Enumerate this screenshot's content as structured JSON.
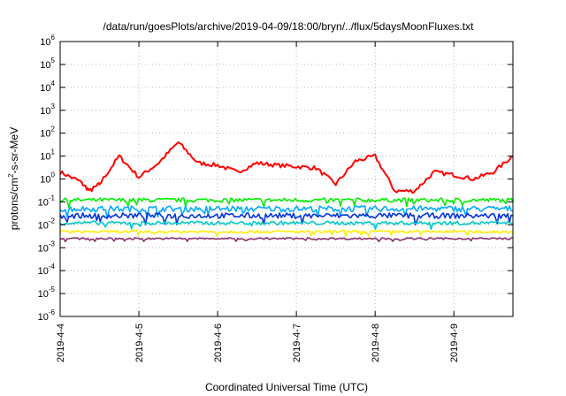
{
  "chart_data": {
    "type": "line",
    "title": "/data/run/goesPlots/archive/2019-04-09/18:00/bryn/../flux/5daysMoonFluxes.txt",
    "xlabel": "Coordinated Universal Time (UTC)",
    "ylabel_parts": [
      "protons/cm",
      "2",
      "-s-sr-MeV"
    ],
    "y_scale": "log",
    "ylim": [
      1e-06,
      1000000.0
    ],
    "y_ticks": [
      {
        "base": "10",
        "exp": "-6"
      },
      {
        "base": "10",
        "exp": "-5"
      },
      {
        "base": "10",
        "exp": "-4"
      },
      {
        "base": "10",
        "exp": "-3"
      },
      {
        "base": "10",
        "exp": "-2"
      },
      {
        "base": "10",
        "exp": "-1"
      },
      {
        "base": "10",
        "exp": "0"
      },
      {
        "base": "10",
        "exp": "1"
      },
      {
        "base": "10",
        "exp": "2"
      },
      {
        "base": "10",
        "exp": "3"
      },
      {
        "base": "10",
        "exp": "4"
      },
      {
        "base": "10",
        "exp": "5"
      },
      {
        "base": "10",
        "exp": "6"
      }
    ],
    "xlim": [
      "2019-04-04T00:00",
      "2019-04-09T18:00"
    ],
    "x_ticks": [
      "2019-4-4",
      "2019-4-5",
      "2019-4-6",
      "2019-4-7",
      "2019-4-8",
      "2019-4-9"
    ],
    "grid": true,
    "series": [
      {
        "color": "#ff0000",
        "x": [
          "2019-04-04T00:00",
          "2019-04-04T06:00",
          "2019-04-04T09:00",
          "2019-04-04T12:00",
          "2019-04-04T18:00",
          "2019-04-05T00:00",
          "2019-04-05T06:00",
          "2019-04-05T12:00",
          "2019-04-05T18:00",
          "2019-04-06T00:00",
          "2019-04-06T06:00",
          "2019-04-06T12:00",
          "2019-04-06T18:00",
          "2019-04-07T00:00",
          "2019-04-07T06:00",
          "2019-04-07T12:00",
          "2019-04-07T18:00",
          "2019-04-08T00:00",
          "2019-04-08T06:00",
          "2019-04-08T12:00",
          "2019-04-08T18:00",
          "2019-04-09T00:00",
          "2019-04-09T06:00",
          "2019-04-09T12:00",
          "2019-04-09T18:00"
        ],
        "y": [
          2.0,
          0.8,
          0.3,
          0.6,
          10,
          1.2,
          5,
          40,
          5,
          4,
          2,
          5,
          4,
          3.5,
          3,
          0.6,
          6,
          10,
          0.3,
          0.3,
          2,
          1.5,
          1,
          2,
          10
        ]
      },
      {
        "color": "#00ee00",
        "y_level": 0.12,
        "jitter": 0.09
      },
      {
        "color": "#00aaff",
        "y_level": 0.05,
        "jitter": 0.13
      },
      {
        "color": "#0033dd",
        "y_level": 0.025,
        "jitter": 0.12
      },
      {
        "color": "#00c8c8",
        "y_level": 0.012,
        "jitter": 0.08
      },
      {
        "color": "#ffee00",
        "y_level": 0.005,
        "jitter": 0.06
      },
      {
        "color": "#8b2e6b",
        "y_level": 0.0025,
        "jitter": 0.04
      }
    ]
  }
}
